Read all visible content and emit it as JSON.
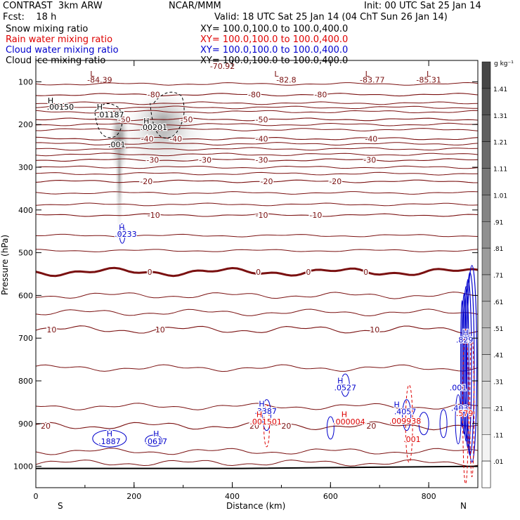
{
  "header": {
    "model": "CONTRAST  3km ARW",
    "org": "NCAR/MMM",
    "init": "Init: 00 UTC Sat 25 Jan 14",
    "fcst": "Fcst:    18 h",
    "valid": "Valid: 18 UTC Sat 25 Jan 14 (04 ChT Sun 26 Jan 14)",
    "fields": [
      {
        "name": "Snow mixing ratio",
        "xy": "XY= 100.0,100.0 to 100.0,400.0",
        "color": "#000000"
      },
      {
        "name": "Rain water mixing ratio",
        "xy": "XY= 100.0,100.0 to 100.0,400.0",
        "color": "#dd0000"
      },
      {
        "name": "Cloud water mixing ratio",
        "xy": "XY= 100.0,100.0 to 100.0,400.0",
        "color": "#0000cc"
      },
      {
        "name": "Cloud ice mixing ratio",
        "xy": "XY= 100.0,100.0 to 100.0,400.0",
        "color": "#000000"
      }
    ]
  },
  "chart_data": {
    "type": "contour",
    "xlabel": "Distance (km)",
    "ylabel": "Pressure (hPa)",
    "xlim": [
      0,
      900
    ],
    "ylim": [
      1050,
      50
    ],
    "x_ticks": [
      0,
      200,
      400,
      600,
      800
    ],
    "y_ticks": [
      100,
      200,
      300,
      400,
      500,
      600,
      700,
      800,
      900,
      1000
    ],
    "end_labels": {
      "left": "S",
      "right": "N"
    },
    "colorbar": {
      "unit": "g kg⁻¹",
      "levels": [
        "1.41",
        "1.31",
        "1.21",
        "1.11",
        "1.01",
        ".91",
        ".81",
        ".71",
        ".61",
        ".51",
        ".41",
        ".31",
        ".21",
        ".11",
        ".01"
      ]
    },
    "temperature_contours": [
      {
        "value": -80,
        "p": 130,
        "labels": [
          {
            "x": 240,
            "text": "-80"
          },
          {
            "x": 445,
            "text": "-80"
          },
          {
            "x": 580,
            "text": "-80"
          }
        ]
      },
      {
        "value": -50,
        "p": 188,
        "labels": [
          {
            "x": 180,
            "text": "-50"
          },
          {
            "x": 307,
            "text": "-50"
          },
          {
            "x": 460,
            "text": "-50"
          }
        ]
      },
      {
        "value": -40,
        "p": 233,
        "labels": [
          {
            "x": 227,
            "text": "-40"
          },
          {
            "x": 285,
            "text": "-40"
          },
          {
            "x": 460,
            "text": "-40"
          },
          {
            "x": 683,
            "text": "-40"
          }
        ]
      },
      {
        "value": -30,
        "p": 283,
        "labels": [
          {
            "x": 238,
            "text": "-30"
          },
          {
            "x": 345,
            "text": "-30"
          },
          {
            "x": 460,
            "text": "-30"
          },
          {
            "x": 680,
            "text": "-30"
          }
        ]
      },
      {
        "value": -20,
        "p": 333,
        "labels": [
          {
            "x": 225,
            "text": "-20"
          },
          {
            "x": 470,
            "text": "-20"
          },
          {
            "x": 610,
            "text": "-20"
          }
        ]
      },
      {
        "value": -10,
        "p": 412,
        "labels": [
          {
            "x": 240,
            "text": "-10"
          },
          {
            "x": 460,
            "text": "-10"
          },
          {
            "x": 570,
            "text": "-10"
          }
        ]
      },
      {
        "value": 0,
        "p": 545,
        "labels": [
          {
            "x": 232,
            "text": "0"
          },
          {
            "x": 453,
            "text": "0"
          },
          {
            "x": 555,
            "text": "0"
          },
          {
            "x": 672,
            "text": "0"
          }
        ]
      },
      {
        "value": 10,
        "p": 680,
        "labels": [
          {
            "x": 32,
            "text": "10"
          },
          {
            "x": 253,
            "text": "10"
          },
          {
            "x": 690,
            "text": "10"
          }
        ]
      },
      {
        "value": 20,
        "p": 905,
        "labels": [
          {
            "x": 20,
            "text": "20"
          },
          {
            "x": 445,
            "text": "20"
          },
          {
            "x": 510,
            "text": "20"
          },
          {
            "x": 683,
            "text": "20"
          }
        ]
      }
    ],
    "extra_isotherms_p": [
      105,
      150,
      160,
      170,
      200,
      212,
      245,
      257,
      270,
      300,
      315,
      360,
      387,
      460,
      495,
      600,
      640,
      770,
      860,
      965,
      992
    ],
    "tropopause_labels": [
      {
        "x": 115,
        "p": 88,
        "text": "L"
      },
      {
        "x": 130,
        "p": 102,
        "text": "-84.39"
      },
      {
        "x": 380,
        "p": 70,
        "text": "-70.92"
      },
      {
        "x": 490,
        "p": 88,
        "text": "L"
      },
      {
        "x": 510,
        "p": 102,
        "text": "-82.8"
      },
      {
        "x": 675,
        "p": 88,
        "text": "L"
      },
      {
        "x": 685,
        "p": 102,
        "text": "-83.77"
      },
      {
        "x": 800,
        "p": 88,
        "text": "L"
      },
      {
        "x": 800,
        "p": 102,
        "text": "-85.31"
      }
    ],
    "hl_labels": [
      {
        "x": 30,
        "p": 150,
        "text": "H",
        "color": "#000000"
      },
      {
        "x": 50,
        "p": 165,
        "text": ".00150",
        "color": "#000000"
      },
      {
        "x": 130,
        "p": 165,
        "text": "H",
        "color": "#000000"
      },
      {
        "x": 152,
        "p": 183,
        "text": ".01187",
        "color": "#000000"
      },
      {
        "x": 225,
        "p": 198,
        "text": "H",
        "color": "#000000"
      },
      {
        "x": 240,
        "p": 213,
        "text": ".00201",
        "color": "#000000"
      },
      {
        "x": 165,
        "p": 253,
        "text": ".001",
        "color": "#000000"
      },
      {
        "x": 175,
        "p": 447,
        "text": "H",
        "color": "#0000cc"
      },
      {
        "x": 183,
        "p": 463,
        "text": ".0233",
        "color": "#0000cc"
      },
      {
        "x": 150,
        "p": 930,
        "text": "H",
        "color": "#0000cc"
      },
      {
        "x": 150,
        "p": 948,
        "text": ".1887",
        "color": "#0000cc"
      },
      {
        "x": 245,
        "p": 930,
        "text": "H",
        "color": "#0000cc"
      },
      {
        "x": 245,
        "p": 948,
        "text": ".0617",
        "color": "#0000cc"
      },
      {
        "x": 460,
        "p": 860,
        "text": "H",
        "color": "#0000cc"
      },
      {
        "x": 468,
        "p": 877,
        "text": ".3387",
        "color": "#0000cc"
      },
      {
        "x": 455,
        "p": 885,
        "text": "H",
        "color": "#dd0000"
      },
      {
        "x": 468,
        "p": 902,
        "text": ".001501",
        "color": "#dd0000"
      },
      {
        "x": 620,
        "p": 806,
        "text": "H",
        "color": "#0000cc"
      },
      {
        "x": 630,
        "p": 822,
        "text": ".0527",
        "color": "#0000cc"
      },
      {
        "x": 628,
        "p": 885,
        "text": "H",
        "color": "#dd0000"
      },
      {
        "x": 638,
        "p": 902,
        "text": ".000004",
        "color": "#dd0000"
      },
      {
        "x": 735,
        "p": 862,
        "text": "H",
        "color": "#0000cc"
      },
      {
        "x": 752,
        "p": 878,
        "text": ".4057",
        "color": "#0000cc"
      },
      {
        "x": 752,
        "p": 900,
        "text": ".009938",
        "color": "#dd0000"
      },
      {
        "x": 766,
        "p": 943,
        "text": ".001",
        "color": "#dd0000"
      },
      {
        "x": 875,
        "p": 693,
        "text": "H",
        "color": "#0000cc"
      },
      {
        "x": 873,
        "p": 710,
        "text": ".829",
        "color": "#0000cc"
      },
      {
        "x": 860,
        "p": 822,
        "text": ".001",
        "color": "#0000cc"
      },
      {
        "x": 863,
        "p": 870,
        "text": ".403",
        "color": "#0000cc"
      },
      {
        "x": 873,
        "p": 882,
        "text": ".579",
        "color": "#dd0000"
      }
    ]
  }
}
